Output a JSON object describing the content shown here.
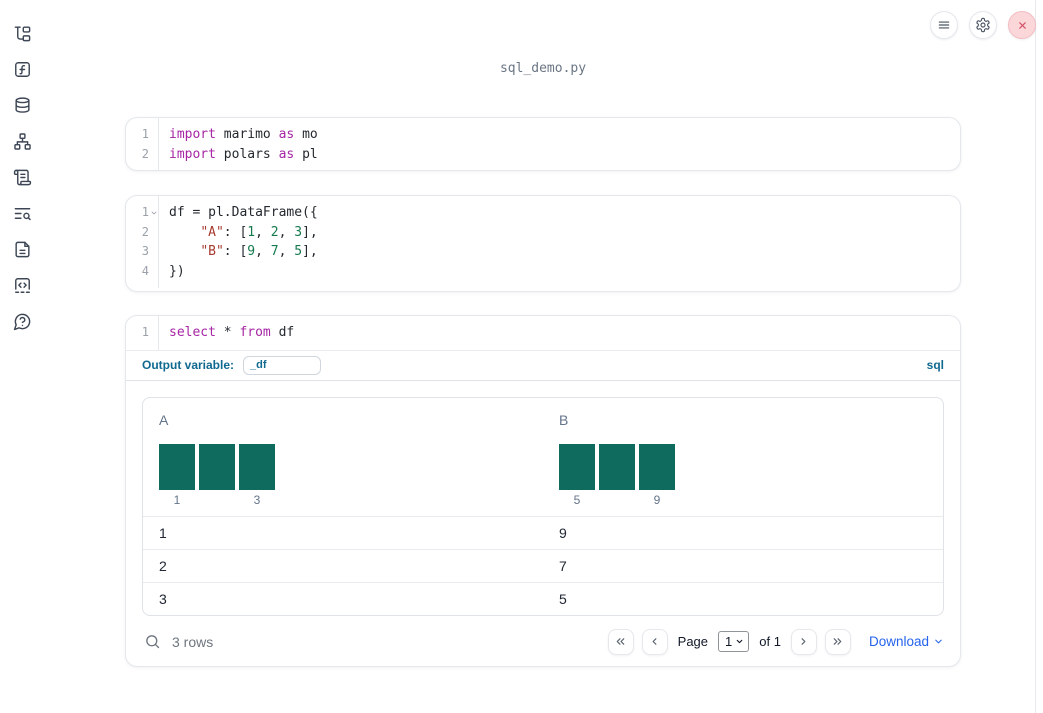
{
  "window": {
    "title": "sql_demo.py"
  },
  "toolbar": {
    "buttons": [
      {
        "name": "menu"
      },
      {
        "name": "settings"
      },
      {
        "name": "close"
      }
    ]
  },
  "sidebar": {
    "icons": [
      "file-explorer",
      "functions",
      "data-sources",
      "dependency-graph",
      "scratchpad",
      "logs-search",
      "documentation",
      "snippets",
      "help"
    ]
  },
  "colors": {
    "accent_blue": "#10698f",
    "link_blue": "#2563eb",
    "keyword_purple": "#a626a4",
    "string_red": "#a73a2f",
    "number_green": "#147a4d",
    "histogram_bar": "#0e6b5d"
  },
  "cells": [
    {
      "type": "python",
      "lines": [
        {
          "number": 1,
          "tokens": [
            {
              "t": "import",
              "s": "kw"
            },
            {
              "t": " marimo ",
              "s": "pl"
            },
            {
              "t": "as",
              "s": "kw"
            },
            {
              "t": " mo",
              "s": "pl"
            }
          ]
        },
        {
          "number": 2,
          "tokens": [
            {
              "t": "import",
              "s": "kw"
            },
            {
              "t": " polars ",
              "s": "pl"
            },
            {
              "t": "as",
              "s": "kw"
            },
            {
              "t": " pl",
              "s": "pl"
            }
          ]
        }
      ]
    },
    {
      "type": "python",
      "lines": [
        {
          "number": 1,
          "fold": true,
          "tokens": [
            {
              "t": "df = pl.DataFrame({",
              "s": "pl"
            }
          ]
        },
        {
          "number": 2,
          "tokens": [
            {
              "t": "    ",
              "s": "pl"
            },
            {
              "t": "\"A\"",
              "s": "str"
            },
            {
              "t": ": [",
              "s": "pl"
            },
            {
              "t": "1",
              "s": "num"
            },
            {
              "t": ", ",
              "s": "pl"
            },
            {
              "t": "2",
              "s": "num"
            },
            {
              "t": ", ",
              "s": "pl"
            },
            {
              "t": "3",
              "s": "num"
            },
            {
              "t": "],",
              "s": "pl"
            }
          ]
        },
        {
          "number": 3,
          "tokens": [
            {
              "t": "    ",
              "s": "pl"
            },
            {
              "t": "\"B\"",
              "s": "str"
            },
            {
              "t": ": [",
              "s": "pl"
            },
            {
              "t": "9",
              "s": "num"
            },
            {
              "t": ", ",
              "s": "pl"
            },
            {
              "t": "7",
              "s": "num"
            },
            {
              "t": ", ",
              "s": "pl"
            },
            {
              "t": "5",
              "s": "num"
            },
            {
              "t": "],",
              "s": "pl"
            }
          ]
        },
        {
          "number": 4,
          "tokens": [
            {
              "t": "})",
              "s": "pl"
            }
          ]
        }
      ]
    },
    {
      "type": "sql",
      "lines": [
        {
          "number": 1,
          "tokens": [
            {
              "t": "select",
              "s": "kw"
            },
            {
              "t": " * ",
              "s": "pl"
            },
            {
              "t": "from",
              "s": "kw"
            },
            {
              "t": " df",
              "s": "pl"
            }
          ]
        }
      ],
      "output_variable_label": "Output variable:",
      "output_variable_value": "_df",
      "language_badge": "sql"
    }
  ],
  "table": {
    "columns": [
      {
        "name": "A",
        "histogram": {
          "bar_values": [
            1,
            1,
            1
          ],
          "min_label": "1",
          "max_label": "3"
        }
      },
      {
        "name": "B",
        "histogram": {
          "bar_values": [
            1,
            1,
            1
          ],
          "min_label": "5",
          "max_label": "9"
        }
      }
    ],
    "rows": [
      [
        "1",
        "9"
      ],
      [
        "2",
        "7"
      ],
      [
        "3",
        "5"
      ]
    ],
    "footer": {
      "row_count": "3 rows",
      "page_label": "Page",
      "page_value": "1",
      "of_label": "of 1",
      "download_label": "Download"
    }
  }
}
